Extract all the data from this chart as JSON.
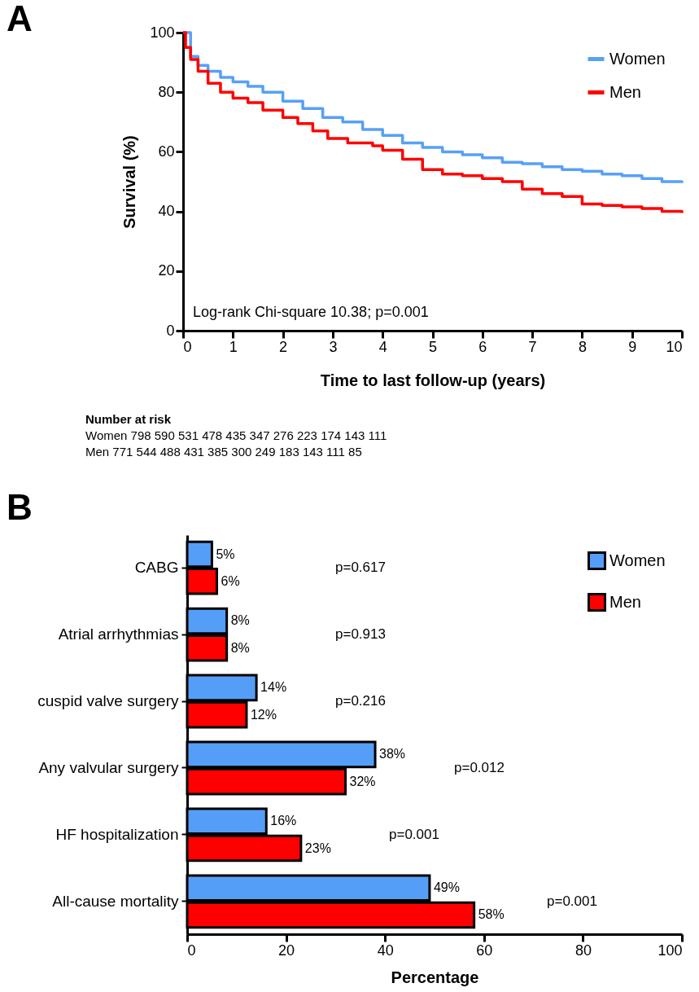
{
  "chart_data": [
    {
      "type": "step",
      "title": "A",
      "xlabel": "Time to last follow-up (years)",
      "ylabel": "Survival (%)",
      "series": [
        {
          "name": "Women",
          "color": "#57a0f7",
          "x": [
            0,
            0.15,
            0.3,
            0.5,
            0.75,
            1,
            1.3,
            1.6,
            2,
            2.4,
            2.8,
            3.2,
            3.6,
            4,
            4.4,
            4.8,
            5.2,
            5.6,
            6,
            6.4,
            6.8,
            7.2,
            7.6,
            8,
            8.4,
            8.8,
            9.2,
            9.6,
            10
          ],
          "values": [
            100,
            92,
            89,
            87,
            85,
            83.5,
            82,
            80,
            77,
            74.5,
            71.5,
            70,
            67.5,
            65.5,
            63,
            61.5,
            60,
            59,
            58,
            56.5,
            56,
            55,
            54,
            53.5,
            52.5,
            52,
            51,
            50,
            49.5
          ]
        },
        {
          "name": "Men",
          "color": "#ff0000",
          "x": [
            0,
            0.05,
            0.15,
            0.3,
            0.5,
            0.75,
            1,
            1.3,
            1.6,
            2,
            2.3,
            2.6,
            2.9,
            3.3,
            3.8,
            4,
            4.4,
            4.8,
            5.2,
            5.6,
            6,
            6.4,
            6.8,
            7.2,
            7.6,
            8,
            8.4,
            8.8,
            9.2,
            9.6,
            10
          ],
          "values": [
            100,
            95,
            91,
            87,
            83,
            80,
            78,
            76.5,
            74,
            71.5,
            69.5,
            67,
            64.5,
            63,
            62,
            60.5,
            57.5,
            54,
            52.5,
            52,
            51,
            50,
            47.5,
            46,
            45,
            42.5,
            42,
            41.5,
            41,
            40,
            39.5
          ]
        }
      ],
      "xlim": [
        0,
        10
      ],
      "xticks": [
        0,
        1,
        2,
        3,
        4,
        5,
        6,
        7,
        8,
        9,
        10
      ],
      "ylim": [
        0,
        100
      ],
      "yticks": [
        0,
        20,
        40,
        60,
        80,
        100
      ],
      "grid": false,
      "legend": "top right",
      "annotations": [
        "Log-rank Chi-square 10.38; p=0.001",
        "Number at risk",
        "Women 798 590 531 478 435 347 276 223 174 143 111",
        "Men 771 544 488 431 385 300 249 183 143 111 85"
      ]
    },
    {
      "type": "bar",
      "orientation": "horizontal",
      "title": "B",
      "xlabel": "Percentage",
      "categories": [
        "CABG",
        "Atrial arrhythmias",
        "cuspid valve surgery",
        "Any valvular surgery",
        "HF hospitalization",
        "All-cause mortality"
      ],
      "series": [
        {
          "name": "Women",
          "color": "#559ef8",
          "values": [
            5,
            8,
            14,
            38,
            16,
            49
          ],
          "value_labels": [
            "5%",
            "8%",
            "14%",
            "38%",
            "16%",
            "49%"
          ]
        },
        {
          "name": "Men",
          "color": "#ff0000",
          "values": [
            6,
            8,
            12,
            32,
            23,
            58
          ],
          "value_labels": [
            "6%",
            "8%",
            "12%",
            "32%",
            "23%",
            "58%"
          ]
        }
      ],
      "xlim": [
        0,
        100
      ],
      "xticks": [
        0,
        20,
        40,
        60,
        80,
        100
      ],
      "grid": false,
      "legend": "top right",
      "annotations": [
        "p=0.617",
        "p=0.913",
        "p=0.216",
        "p=0.012",
        "p=0.001",
        "p=0.001"
      ]
    }
  ]
}
